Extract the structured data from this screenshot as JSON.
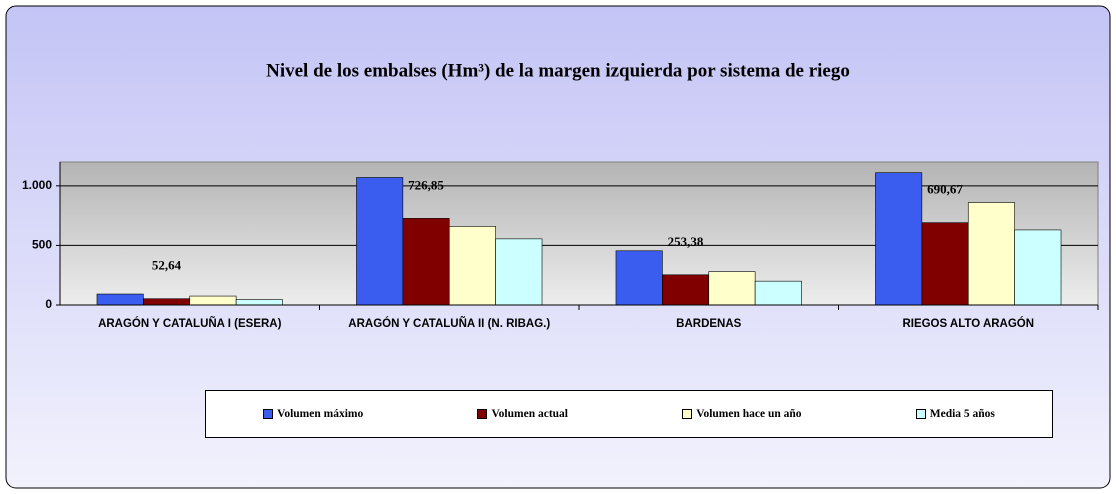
{
  "chart_data": {
    "type": "bar",
    "title": "Nivel de los embalses (Hm³) de la margen izquierda por sistema de riego",
    "categories": [
      "ARAGÓN Y CATALUÑA I (ESERA)",
      "ARAGÓN Y CATALUÑA II (N. RIBAG.)",
      "BARDENAS",
      "RIEGOS ALTO ARAGÓN"
    ],
    "series": [
      {
        "name": "Volumen máximo",
        "color": "#3a5df0",
        "values": [
          92,
          1070,
          455,
          1110
        ]
      },
      {
        "name": "Volumen actual",
        "color": "#800000",
        "values": [
          52.64,
          726.85,
          253.38,
          690.67
        ],
        "value_labels": [
          "52,64",
          "726,85",
          "253,38",
          "690,67"
        ]
      },
      {
        "name": "Volumen hace un año",
        "color": "#ffffcc",
        "values": [
          75,
          660,
          280,
          860
        ]
      },
      {
        "name": "Media 5 años",
        "color": "#ccffff",
        "values": [
          45,
          555,
          200,
          630
        ]
      }
    ],
    "ylim": [
      0,
      1200
    ],
    "yticks": [
      0,
      500,
      {
        "value": 1000,
        "label": "1.000"
      }
    ],
    "grid": true
  }
}
